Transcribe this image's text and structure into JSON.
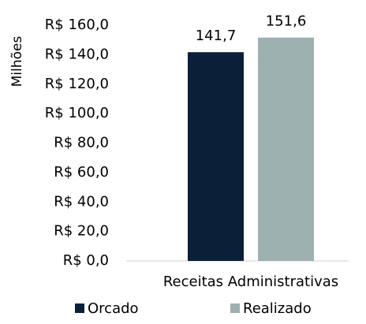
{
  "chart_data": {
    "type": "bar",
    "y_label": "Milhões",
    "categories": [
      "Receitas Administrativas"
    ],
    "series": [
      {
        "name": "Orcado",
        "color": "#0c1f38",
        "values": [
          141.7
        ],
        "value_labels": [
          "141,7"
        ]
      },
      {
        "name": "Realizado",
        "color": "#9db1b1",
        "values": [
          151.6
        ],
        "value_labels": [
          "151,6"
        ]
      }
    ],
    "ylim": [
      0,
      160
    ],
    "yticks": [
      {
        "value": 0,
        "label": "R$ 0,0"
      },
      {
        "value": 20,
        "label": "R$ 20,0"
      },
      {
        "value": 40,
        "label": "R$ 40,0"
      },
      {
        "value": 60,
        "label": "R$ 60,0"
      },
      {
        "value": 80,
        "label": "R$ 80,0"
      },
      {
        "value": 100,
        "label": "R$ 100,0"
      },
      {
        "value": 120,
        "label": "R$ 120,0"
      },
      {
        "value": 140,
        "label": "R$ 140,0"
      },
      {
        "value": 160,
        "label": "R$ 160,0"
      }
    ],
    "grid": false,
    "legend": "bottom"
  }
}
